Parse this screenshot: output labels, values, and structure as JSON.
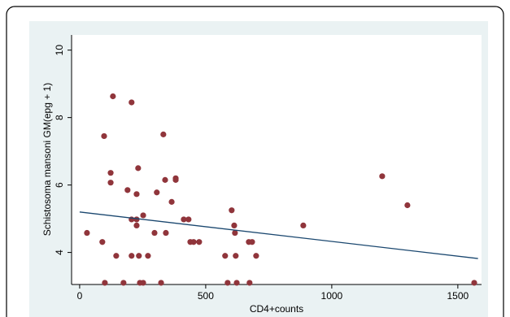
{
  "chart_data": {
    "type": "scatter",
    "xlabel": "CD4+counts",
    "ylabel": "Schistosoma mansoni GM(epg + 1)",
    "x": [
      29,
      90,
      100,
      97,
      123,
      123,
      132,
      145,
      174,
      190,
      206,
      206,
      206,
      226,
      226,
      232,
      235,
      239,
      252,
      252,
      226,
      271,
      297,
      306,
      323,
      332,
      339,
      342,
      365,
      381,
      381,
      413,
      432,
      439,
      452,
      474,
      577,
      587,
      603,
      613,
      616,
      619,
      623,
      671,
      684,
      674,
      700,
      887,
      1200,
      1300,
      1565
    ],
    "values": [
      4.58,
      4.31,
      3.1,
      7.45,
      6.36,
      6.07,
      8.63,
      3.9,
      3.1,
      5.85,
      8.45,
      4.98,
      3.9,
      4.98,
      5.73,
      6.5,
      3.9,
      3.1,
      5.1,
      3.1,
      4.8,
      3.9,
      4.58,
      5.78,
      3.1,
      7.5,
      6.15,
      4.58,
      5.5,
      6.2,
      6.15,
      4.98,
      4.98,
      4.31,
      4.31,
      4.31,
      3.9,
      3.1,
      5.25,
      4.8,
      4.58,
      3.9,
      3.1,
      4.31,
      4.31,
      3.1,
      3.9,
      4.8,
      6.26,
      5.4,
      3.1
    ],
    "color": "#90353b",
    "fit_line": {
      "x": [
        0,
        1580
      ],
      "y": [
        5.2,
        3.82
      ],
      "color": "#1a476f"
    },
    "xlim": [
      -32,
      1594
    ],
    "xticks": [
      0,
      500,
      1000,
      1500
    ],
    "ylim": [
      3.05,
      10.45
    ],
    "yticks": [
      4,
      6,
      8,
      10
    ]
  }
}
